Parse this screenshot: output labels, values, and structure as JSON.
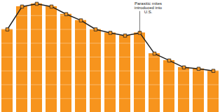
{
  "chart_data": {
    "type": "bar",
    "categories": [
      null,
      null,
      null,
      null,
      null,
      null,
      null,
      null,
      null,
      null,
      null,
      null,
      null,
      null,
      null
    ],
    "values": [
      120,
      153,
      157,
      153,
      142,
      133,
      120,
      115,
      111,
      115,
      85,
      75,
      65,
      63,
      60
    ],
    "color": "#f7941d",
    "marker": "square",
    "ylim": [
      0,
      160
    ],
    "yticks": [
      0,
      20,
      40,
      60,
      80,
      100,
      120,
      140,
      160
    ],
    "grid": true,
    "tick_labels": false,
    "annotations": [
      {
        "text": "Parasitic mites introduced into U.S.",
        "x": 9
      }
    ]
  }
}
